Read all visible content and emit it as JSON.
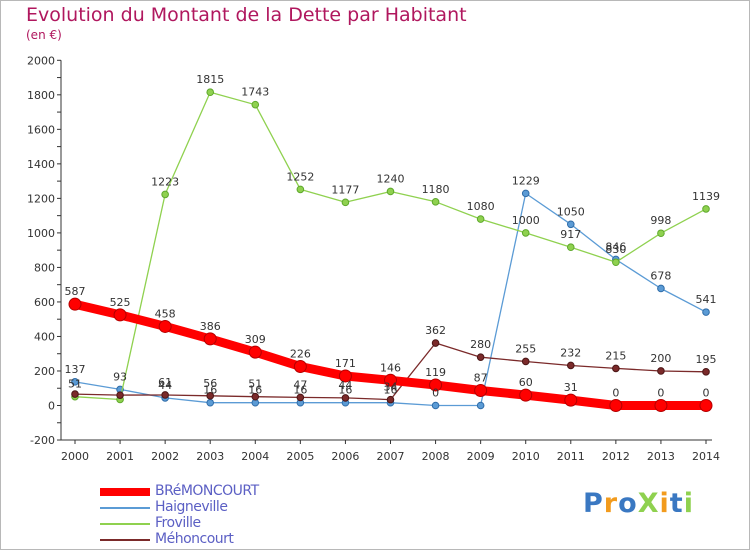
{
  "chart_data": {
    "type": "line",
    "title": "Evolution du Montant de la Dette par Habitant",
    "subtitle": "(en €)",
    "x": [
      "2000",
      "2001",
      "2002",
      "2003",
      "2004",
      "2005",
      "2006",
      "2007",
      "2008",
      "2009",
      "2010",
      "2011",
      "2012",
      "2013",
      "2014"
    ],
    "ylim": [
      -200,
      2000
    ],
    "yticks": [
      -200,
      0,
      200,
      400,
      600,
      800,
      1000,
      1200,
      1400,
      1600,
      1800,
      2000
    ],
    "grid": false,
    "legend_position": "bottom-left",
    "series": [
      {
        "name": "BRéMONCOURT",
        "color": "#ff0000",
        "values": [
          587,
          525,
          458,
          386,
          309,
          226,
          171,
          146,
          119,
          87,
          60,
          31,
          0,
          0,
          0
        ]
      },
      {
        "name": "Haigneville",
        "color": "#5b9bd5",
        "values": [
          137,
          93,
          44,
          16,
          16,
          16,
          16,
          16,
          0,
          0,
          1229,
          1050,
          846,
          678,
          541
        ]
      },
      {
        "name": "Froville",
        "color": "#8fd14f",
        "values": [
          51,
          35,
          1223,
          1815,
          1743,
          1252,
          1177,
          1240,
          1180,
          1080,
          1000,
          917,
          830,
          998,
          1139
        ]
      },
      {
        "name": "Méhoncourt",
        "color": "#7b2a2a",
        "values": [
          66,
          60,
          61,
          56,
          51,
          47,
          44,
          34,
          362,
          280,
          255,
          232,
          215,
          200,
          195
        ]
      }
    ],
    "data_labels": [
      [
        587,
        525,
        458,
        386,
        309,
        226,
        171,
        146,
        119,
        87,
        60,
        31,
        0,
        0,
        0
      ],
      [
        137,
        93,
        44,
        16,
        16,
        16,
        16,
        16,
        0,
        null,
        1229,
        1050,
        846,
        678,
        541
      ],
      [
        51,
        null,
        1223,
        1815,
        1743,
        1252,
        1177,
        1240,
        1180,
        1080,
        1000,
        917,
        830,
        998,
        1139
      ],
      [
        null,
        null,
        61,
        56,
        51,
        47,
        44,
        34,
        362,
        280,
        255,
        232,
        215,
        200,
        195
      ]
    ]
  },
  "logo": {
    "text": "ProXiti",
    "letter_colors": [
      "#3a78c2",
      "#f29b1d",
      "#3a78c2",
      "#8fd14f",
      "#f29b1d",
      "#3a78c2",
      "#8fd14f"
    ]
  }
}
